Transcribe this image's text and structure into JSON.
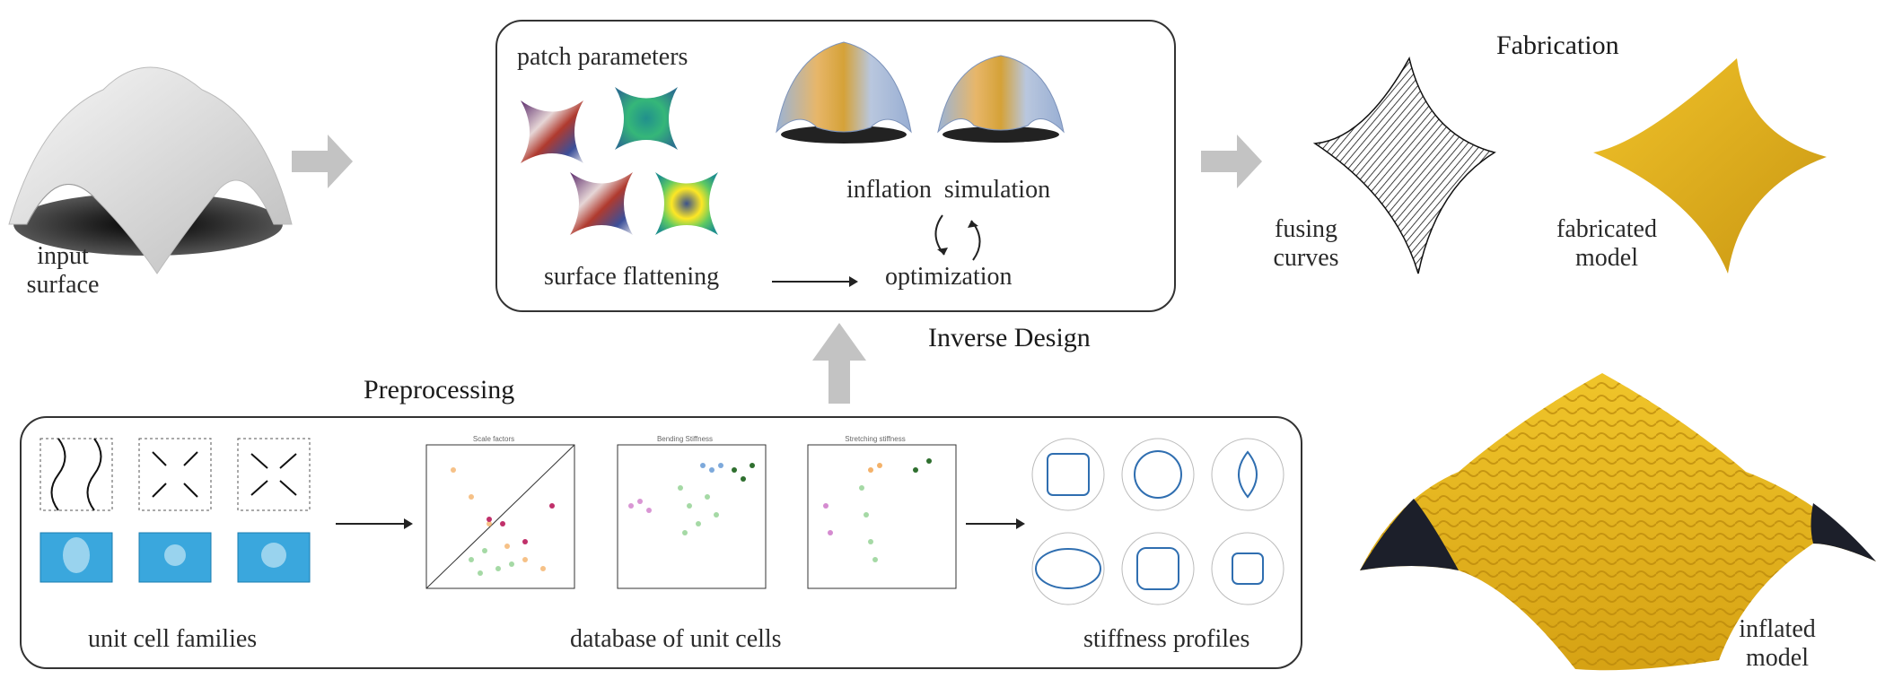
{
  "labels": {
    "input_surface": "input\nsurface",
    "patch_parameters": "patch parameters",
    "inflation_simulation": "inflation  simulation",
    "surface_flattening": "surface flattening",
    "optimization": "optimization",
    "inverse_design": "Inverse Design",
    "fabrication": "Fabrication",
    "fusing_curves": "fusing\ncurves",
    "fabricated_model": "fabricated\nmodel",
    "preprocessing": "Preprocessing",
    "unit_cell_families": "unit cell families",
    "database_of_unit_cells": "database of unit cells",
    "stiffness_profiles": "stiffness profiles",
    "inflated_model": "inflated\nmodel"
  },
  "plot_titles": {
    "scale_factors": "Scale factors",
    "bending_stiffness": "Bending Stiffness",
    "stretching_stiffness": "Stretching stiffness"
  },
  "colors": {
    "arrow_gray": "#c3c3c3",
    "cell_blue": "#3aa7dd",
    "fabric_yellow": "#e8b71e",
    "panel_border": "#333333"
  }
}
